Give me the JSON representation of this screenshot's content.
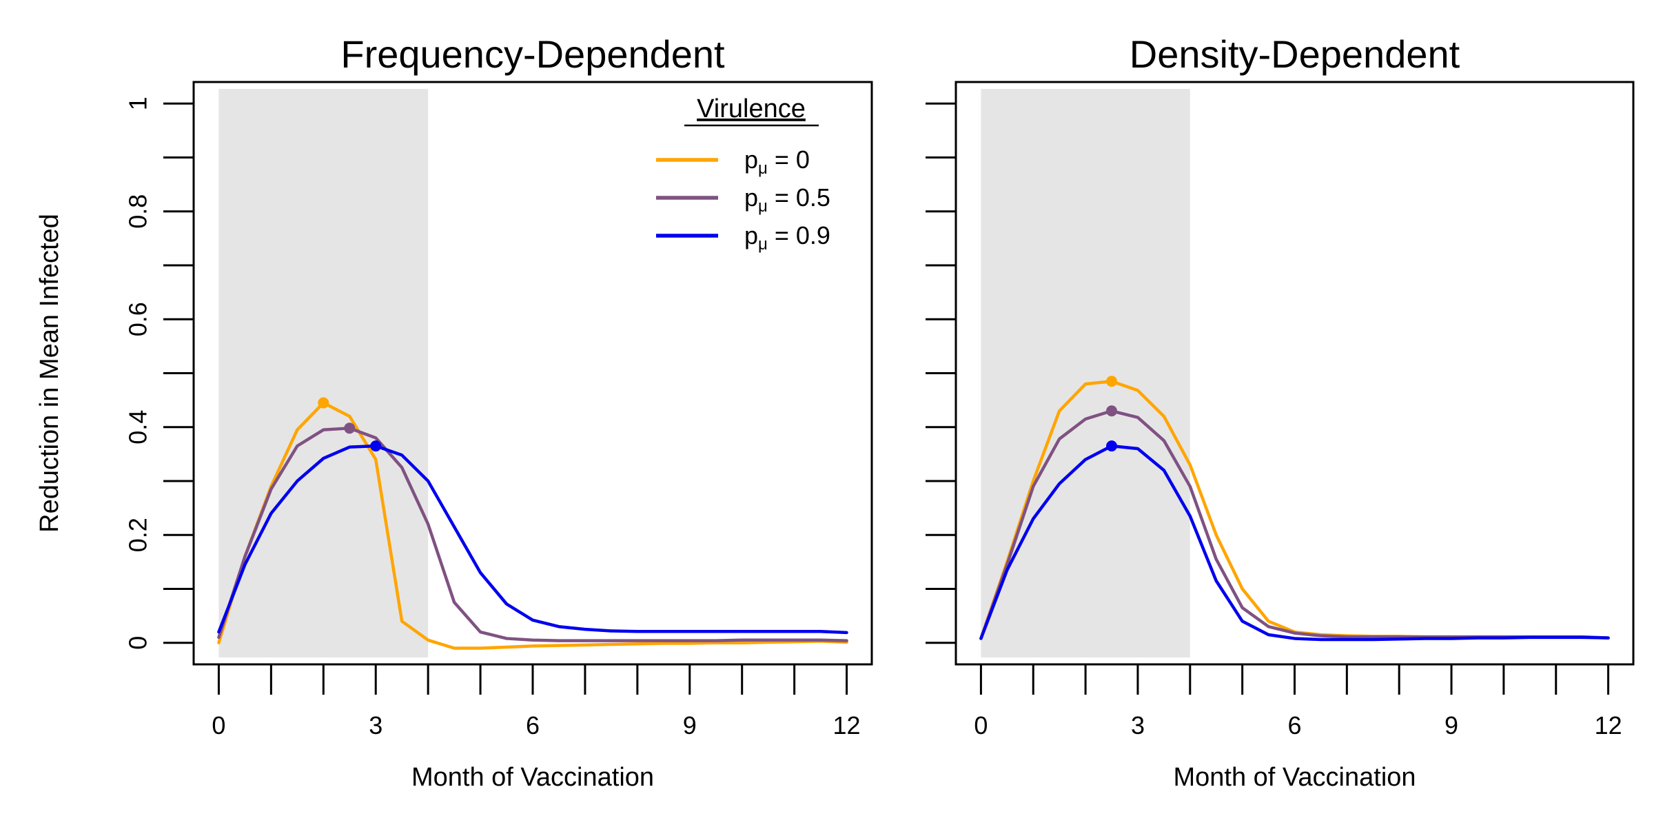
{
  "chart_data": [
    {
      "type": "line",
      "title": "Frequency-Dependent",
      "xlabel": "Month of Vaccination",
      "ylabel": "Reduction in Mean Infected",
      "xlim": [
        -0.48,
        12.48
      ],
      "ylim": [
        -0.04,
        1.04
      ],
      "xticks": [
        0,
        3,
        6,
        9,
        12
      ],
      "yticks": [
        "0",
        "0.2",
        "0.4",
        "0.6",
        "0.8",
        "1"
      ],
      "shaded_region": [
        0,
        4
      ],
      "legend": {
        "title": "Virulence",
        "placement": "top-right"
      },
      "x": [
        0,
        0.5,
        1,
        1.5,
        2,
        2.5,
        3,
        3.5,
        4,
        4.5,
        5,
        5.5,
        6,
        6.5,
        7,
        7.5,
        8,
        8.5,
        9,
        9.5,
        10,
        10.5,
        11,
        11.5,
        12
      ],
      "series": [
        {
          "name": "p",
          "subscript": "μ",
          "suffix": " = 0",
          "color": "#FFA500",
          "values": [
            0.0,
            0.16,
            0.29,
            0.395,
            0.445,
            0.42,
            0.34,
            0.04,
            0.005,
            -0.01,
            -0.01,
            -0.008,
            -0.006,
            -0.005,
            -0.004,
            -0.003,
            -0.002,
            -0.001,
            -0.001,
            0.0,
            0.0,
            0.001,
            0.002,
            0.003,
            0.001
          ],
          "peak_x": 2
        },
        {
          "name": "p",
          "subscript": "μ",
          "suffix": " = 0.5",
          "color": "#7F5282",
          "values": [
            0.01,
            0.16,
            0.285,
            0.365,
            0.395,
            0.398,
            0.38,
            0.325,
            0.22,
            0.075,
            0.02,
            0.008,
            0.005,
            0.004,
            0.004,
            0.004,
            0.004,
            0.004,
            0.004,
            0.004,
            0.005,
            0.005,
            0.005,
            0.005,
            0.004
          ],
          "peak_x": 2.5
        },
        {
          "name": "p",
          "subscript": "μ",
          "suffix": " = 0.9",
          "color": "#0000EE",
          "values": [
            0.02,
            0.145,
            0.24,
            0.3,
            0.342,
            0.363,
            0.365,
            0.348,
            0.3,
            0.215,
            0.13,
            0.072,
            0.042,
            0.03,
            0.025,
            0.022,
            0.021,
            0.021,
            0.021,
            0.021,
            0.021,
            0.021,
            0.021,
            0.021,
            0.019
          ],
          "peak_x": 3
        }
      ]
    },
    {
      "type": "line",
      "title": "Density-Dependent",
      "xlabel": "Month of Vaccination",
      "xlim": [
        -0.48,
        12.48
      ],
      "ylim": [
        -0.04,
        1.04
      ],
      "xticks": [
        0,
        3,
        6,
        9,
        12
      ],
      "shaded_region": [
        0,
        4
      ],
      "x": [
        0,
        0.5,
        1,
        1.5,
        2,
        2.5,
        3,
        3.5,
        4,
        4.5,
        5,
        5.5,
        6,
        6.5,
        7,
        7.5,
        8,
        8.5,
        9,
        9.5,
        10,
        10.5,
        11,
        11.5,
        12
      ],
      "series": [
        {
          "name": "p",
          "subscript": "μ",
          "suffix": " = 0",
          "color": "#FFA500",
          "values": [
            0.008,
            0.15,
            0.3,
            0.43,
            0.48,
            0.485,
            0.468,
            0.42,
            0.33,
            0.2,
            0.1,
            0.04,
            0.02,
            0.015,
            0.013,
            0.012,
            0.012,
            0.011,
            0.011,
            0.011,
            0.011,
            0.011,
            0.011,
            0.011,
            0.009
          ],
          "peak_x": 2.5
        },
        {
          "name": "p",
          "subscript": "μ",
          "suffix": " = 0.5",
          "color": "#7F5282",
          "values": [
            0.008,
            0.145,
            0.29,
            0.378,
            0.415,
            0.43,
            0.418,
            0.375,
            0.29,
            0.155,
            0.065,
            0.03,
            0.018,
            0.013,
            0.011,
            0.011,
            0.011,
            0.011,
            0.011,
            0.011,
            0.011,
            0.011,
            0.011,
            0.011,
            0.009
          ],
          "peak_x": 2.5
        },
        {
          "name": "p",
          "subscript": "μ",
          "suffix": " = 0.9",
          "color": "#0000EE",
          "values": [
            0.008,
            0.135,
            0.23,
            0.295,
            0.34,
            0.365,
            0.36,
            0.32,
            0.235,
            0.115,
            0.04,
            0.015,
            0.008,
            0.006,
            0.006,
            0.006,
            0.007,
            0.008,
            0.008,
            0.009,
            0.009,
            0.01,
            0.01,
            0.01,
            0.009
          ],
          "peak_x": 2.5
        }
      ]
    }
  ]
}
